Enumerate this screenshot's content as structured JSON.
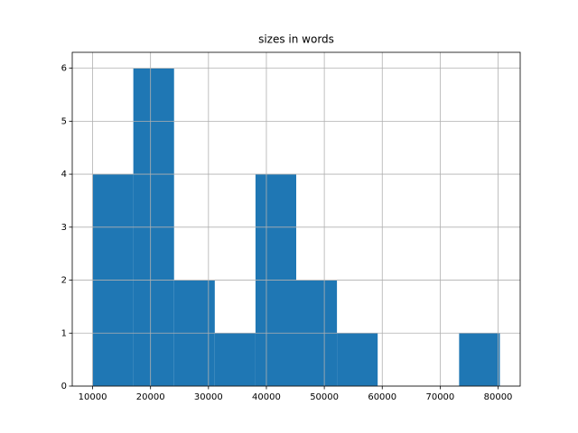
{
  "chart_data": {
    "type": "histogram",
    "title": "sizes in words",
    "bins": [
      10000,
      17030,
      24060,
      31090,
      38120,
      45150,
      52180,
      59210,
      66240,
      73270,
      80300
    ],
    "values": [
      4,
      6,
      2,
      1,
      4,
      2,
      1,
      0,
      0,
      1
    ],
    "color": "#1f77b4",
    "xlim": [
      6485,
      83815
    ],
    "xticks": [
      10000,
      20000,
      30000,
      40000,
      50000,
      60000,
      70000,
      80000
    ],
    "ylim": [
      0,
      6.3
    ],
    "yticks": [
      0,
      1,
      2,
      3,
      4,
      5,
      6
    ],
    "grid": true
  }
}
